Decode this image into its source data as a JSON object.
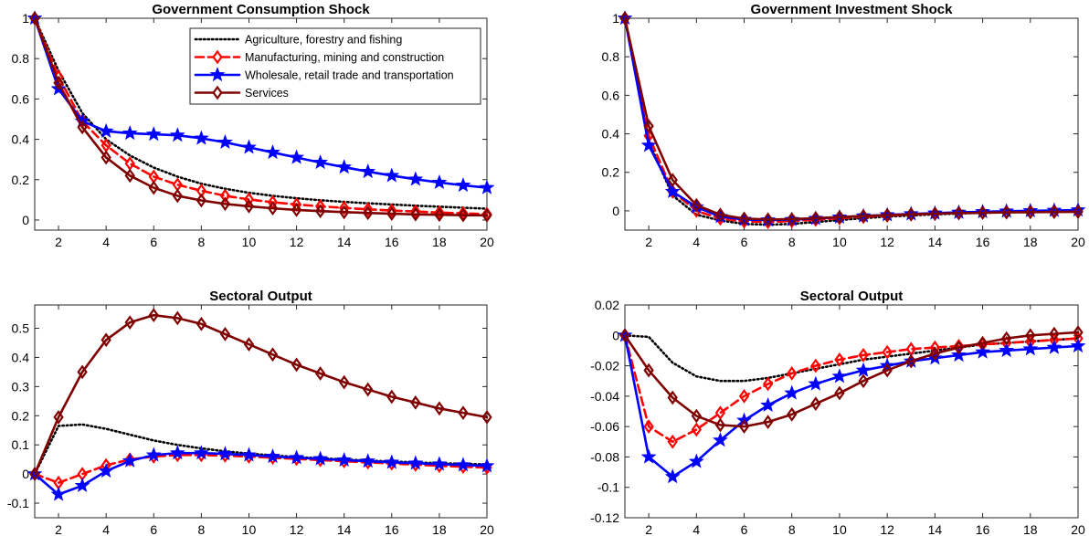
{
  "colors": {
    "agriculture": "#000000",
    "manufacturing": "#ff0000",
    "wholesale": "#0000ff",
    "services": "#7f0000"
  },
  "legend": [
    {
      "label": "Agriculture, forestry and fishing",
      "style": "dotted",
      "color": "#000000",
      "marker": "none"
    },
    {
      "label": "Manufacturing, mining and construction",
      "style": "dashed",
      "color": "#ff0000",
      "marker": "diamond-open"
    },
    {
      "label": "Wholesale, retail trade and transportation",
      "style": "solid",
      "color": "#0000ff",
      "marker": "star"
    },
    {
      "label": "Services",
      "style": "solid",
      "color": "#7f0000",
      "marker": "diamond-open"
    }
  ],
  "chart_data": [
    {
      "type": "line",
      "title": "Government Consumption Shock",
      "xlabel": "",
      "ylabel": "",
      "xlim": [
        1,
        20
      ],
      "ylim": [
        -0.05,
        1
      ],
      "xticks": [
        "2",
        "4",
        "6",
        "8",
        "10",
        "12",
        "14",
        "16",
        "18",
        "20"
      ],
      "yticks": [
        "0",
        "0.2",
        "0.4",
        "0.6",
        "0.8",
        "1"
      ],
      "legend_position": "top-right",
      "x": [
        1,
        2,
        3,
        4,
        5,
        6,
        7,
        8,
        9,
        10,
        11,
        12,
        13,
        14,
        15,
        16,
        17,
        18,
        19,
        20
      ],
      "series": [
        {
          "name": "Agriculture, forestry and fishing",
          "values": [
            1.0,
            0.74,
            0.53,
            0.4,
            0.32,
            0.26,
            0.215,
            0.18,
            0.155,
            0.135,
            0.12,
            0.108,
            0.098,
            0.09,
            0.083,
            0.077,
            0.071,
            0.066,
            0.061,
            0.056
          ]
        },
        {
          "name": "Manufacturing, mining and construction",
          "values": [
            1.0,
            0.71,
            0.49,
            0.37,
            0.28,
            0.215,
            0.175,
            0.145,
            0.12,
            0.102,
            0.088,
            0.077,
            0.068,
            0.06,
            0.053,
            0.047,
            0.042,
            0.037,
            0.033,
            0.029
          ]
        },
        {
          "name": "Wholesale, retail trade and transportation",
          "values": [
            1.0,
            0.65,
            0.49,
            0.44,
            0.43,
            0.425,
            0.42,
            0.405,
            0.385,
            0.36,
            0.335,
            0.31,
            0.285,
            0.262,
            0.24,
            0.22,
            0.202,
            0.186,
            0.172,
            0.16
          ]
        },
        {
          "name": "Services",
          "values": [
            1.0,
            0.68,
            0.46,
            0.31,
            0.22,
            0.16,
            0.12,
            0.097,
            0.08,
            0.068,
            0.058,
            0.05,
            0.044,
            0.039,
            0.035,
            0.031,
            0.028,
            0.026,
            0.024,
            0.023
          ]
        }
      ]
    },
    {
      "type": "line",
      "title": "Government Investment Shock",
      "xlabel": "",
      "ylabel": "",
      "xlim": [
        1,
        20
      ],
      "ylim": [
        -0.1,
        1
      ],
      "xticks": [
        "2",
        "4",
        "6",
        "8",
        "10",
        "12",
        "14",
        "16",
        "18",
        "20"
      ],
      "yticks": [
        "0",
        "0.2",
        "0.4",
        "0.6",
        "0.8",
        "1"
      ],
      "x": [
        1,
        2,
        3,
        4,
        5,
        6,
        7,
        8,
        9,
        10,
        11,
        12,
        13,
        14,
        15,
        16,
        17,
        18,
        19,
        20
      ],
      "series": [
        {
          "name": "Agriculture, forestry and fishing",
          "values": [
            1.0,
            0.36,
            0.08,
            -0.02,
            -0.05,
            -0.068,
            -0.072,
            -0.068,
            -0.058,
            -0.048,
            -0.038,
            -0.03,
            -0.024,
            -0.018,
            -0.014,
            -0.01,
            -0.007,
            -0.004,
            -0.002,
            0.0
          ]
        },
        {
          "name": "Manufacturing, mining and construction",
          "values": [
            1.0,
            0.39,
            0.1,
            0.0,
            -0.04,
            -0.055,
            -0.058,
            -0.053,
            -0.046,
            -0.038,
            -0.031,
            -0.025,
            -0.019,
            -0.015,
            -0.011,
            -0.008,
            -0.005,
            -0.003,
            -0.001,
            0.0
          ]
        },
        {
          "name": "Wholesale, retail trade and transportation",
          "values": [
            1.0,
            0.34,
            0.1,
            0.02,
            -0.03,
            -0.045,
            -0.048,
            -0.046,
            -0.04,
            -0.033,
            -0.027,
            -0.021,
            -0.016,
            -0.012,
            -0.008,
            -0.005,
            -0.002,
            0.0,
            0.002,
            0.004
          ]
        },
        {
          "name": "Services",
          "values": [
            1.0,
            0.44,
            0.16,
            0.03,
            -0.02,
            -0.04,
            -0.045,
            -0.043,
            -0.038,
            -0.032,
            -0.027,
            -0.022,
            -0.018,
            -0.015,
            -0.012,
            -0.01,
            -0.008,
            -0.007,
            -0.006,
            -0.005
          ]
        }
      ]
    },
    {
      "type": "line",
      "title": "Sectoral Output",
      "xlabel": "",
      "ylabel": "",
      "xlim": [
        1,
        20
      ],
      "ylim": [
        -0.15,
        0.58
      ],
      "xticks": [
        "2",
        "4",
        "6",
        "8",
        "10",
        "12",
        "14",
        "16",
        "18",
        "20"
      ],
      "yticks": [
        "-0.1",
        "0",
        "0.1",
        "0.2",
        "0.3",
        "0.4",
        "0.5"
      ],
      "x": [
        1,
        2,
        3,
        4,
        5,
        6,
        7,
        8,
        9,
        10,
        11,
        12,
        13,
        14,
        15,
        16,
        17,
        18,
        19,
        20
      ],
      "series": [
        {
          "name": "Agriculture, forestry and fishing",
          "values": [
            0.0,
            0.165,
            0.17,
            0.155,
            0.135,
            0.115,
            0.1,
            0.088,
            0.078,
            0.07,
            0.064,
            0.058,
            0.054,
            0.05,
            0.046,
            0.043,
            0.04,
            0.037,
            0.035,
            0.033
          ]
        },
        {
          "name": "Manufacturing, mining and construction",
          "values": [
            0.0,
            -0.03,
            0.0,
            0.03,
            0.05,
            0.06,
            0.065,
            0.065,
            0.063,
            0.06,
            0.056,
            0.052,
            0.048,
            0.044,
            0.04,
            0.036,
            0.032,
            0.028,
            0.025,
            0.022
          ]
        },
        {
          "name": "Wholesale, retail trade and transportation",
          "values": [
            0.0,
            -0.07,
            -0.04,
            0.01,
            0.045,
            0.065,
            0.072,
            0.072,
            0.069,
            0.065,
            0.06,
            0.056,
            0.052,
            0.048,
            0.044,
            0.04,
            0.037,
            0.034,
            0.031,
            0.028
          ]
        },
        {
          "name": "Services",
          "values": [
            0.0,
            0.195,
            0.35,
            0.46,
            0.52,
            0.545,
            0.535,
            0.515,
            0.48,
            0.445,
            0.41,
            0.375,
            0.345,
            0.315,
            0.29,
            0.265,
            0.245,
            0.225,
            0.21,
            0.195
          ]
        }
      ]
    },
    {
      "type": "line",
      "title": "Sectoral Output",
      "xlabel": "",
      "ylabel": "",
      "xlim": [
        1,
        20
      ],
      "ylim": [
        -0.12,
        0.02
      ],
      "xticks": [
        "2",
        "4",
        "6",
        "8",
        "10",
        "12",
        "14",
        "16",
        "18",
        "20"
      ],
      "yticks": [
        "-0.12",
        "-0.1",
        "-0.08",
        "-0.06",
        "-0.04",
        "-0.02",
        "0",
        "0.02"
      ],
      "x": [
        1,
        2,
        3,
        4,
        5,
        6,
        7,
        8,
        9,
        10,
        11,
        12,
        13,
        14,
        15,
        16,
        17,
        18,
        19,
        20
      ],
      "series": [
        {
          "name": "Agriculture, forestry and fishing",
          "values": [
            0.0,
            -0.001,
            -0.018,
            -0.027,
            -0.03,
            -0.03,
            -0.028,
            -0.025,
            -0.022,
            -0.019,
            -0.016,
            -0.014,
            -0.012,
            -0.01,
            -0.008,
            -0.006,
            -0.005,
            -0.004,
            -0.003,
            -0.002
          ]
        },
        {
          "name": "Manufacturing, mining and construction",
          "values": [
            0.0,
            -0.06,
            -0.07,
            -0.062,
            -0.051,
            -0.04,
            -0.032,
            -0.025,
            -0.02,
            -0.016,
            -0.013,
            -0.011,
            -0.009,
            -0.008,
            -0.007,
            -0.006,
            -0.005,
            -0.004,
            -0.003,
            -0.002
          ]
        },
        {
          "name": "Wholesale, retail trade and transportation",
          "values": [
            0.0,
            -0.08,
            -0.093,
            -0.083,
            -0.069,
            -0.056,
            -0.046,
            -0.038,
            -0.032,
            -0.027,
            -0.023,
            -0.02,
            -0.017,
            -0.015,
            -0.013,
            -0.011,
            -0.01,
            -0.009,
            -0.008,
            -0.007
          ]
        },
        {
          "name": "Services",
          "values": [
            0.0,
            -0.023,
            -0.041,
            -0.053,
            -0.059,
            -0.06,
            -0.057,
            -0.052,
            -0.045,
            -0.038,
            -0.03,
            -0.023,
            -0.017,
            -0.012,
            -0.008,
            -0.005,
            -0.002,
            0.0,
            0.001,
            0.002
          ]
        }
      ]
    }
  ]
}
